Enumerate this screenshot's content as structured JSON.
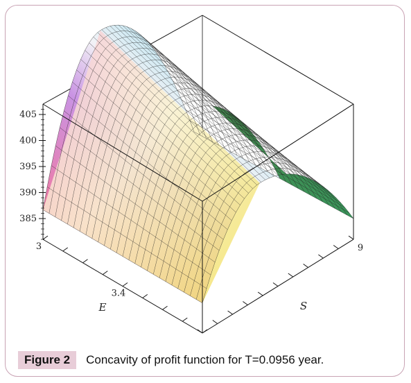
{
  "figure": {
    "label": "Figure 2",
    "caption": "Concavity of profit function for T=0.0956 year."
  },
  "chart_data": {
    "type": "surface",
    "title": "",
    "x_axis": {
      "label": "E",
      "ticks": [
        "3",
        "3.4"
      ],
      "range": [
        3,
        3.8
      ]
    },
    "y_axis": {
      "label": "S",
      "ticks": [
        "9"
      ]
    },
    "z_axis": {
      "label": "",
      "ticks": [
        "405",
        "400",
        "395",
        "390",
        "385"
      ],
      "range": [
        381,
        407
      ]
    },
    "box": true,
    "colormap": [
      "#d63b55",
      "#e58aa8",
      "#c889df",
      "#8f73cf",
      "#ffffff",
      "#9fd9ee",
      "#2e8a43",
      "#f1e35e",
      "#e89a55"
    ]
  }
}
